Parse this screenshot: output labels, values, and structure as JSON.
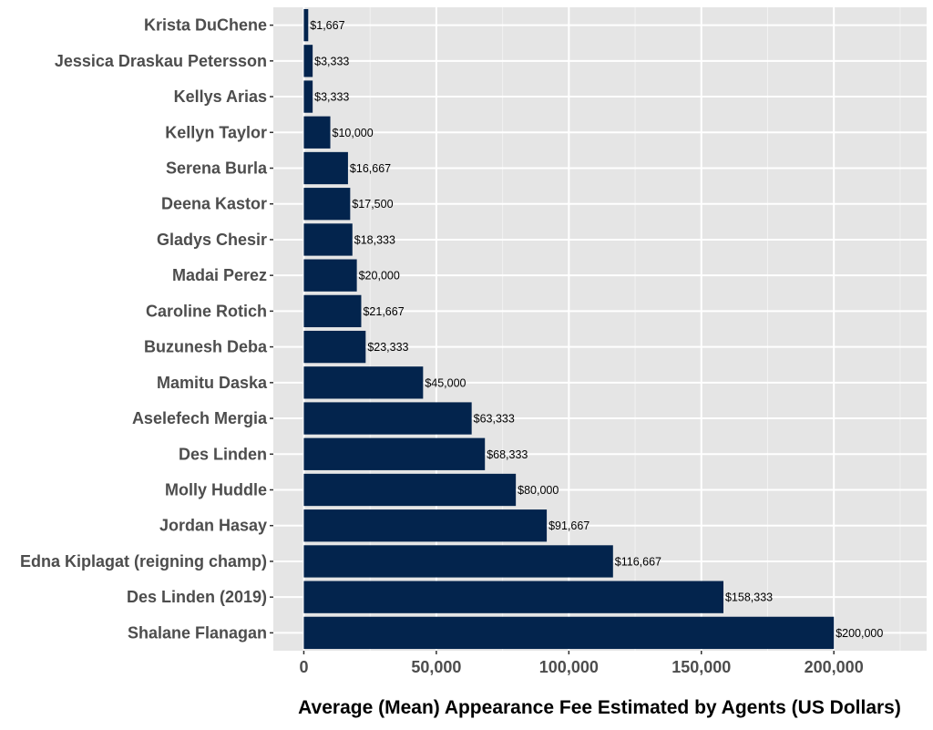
{
  "chart_data": {
    "type": "bar",
    "orientation": "horizontal",
    "categories": [
      "Krista DuChene",
      "Jessica Draskau Petersson",
      "Kellys Arias",
      "Kellyn Taylor",
      "Serena Burla",
      "Deena Kastor",
      "Gladys Chesir",
      "Madai Perez",
      "Caroline Rotich",
      "Buzunesh Deba",
      "Mamitu Daska",
      "Aselefech Mergia",
      "Des Linden",
      "Molly Huddle",
      "Jordan Hasay",
      "Edna Kiplagat (reigning champ)",
      "Des Linden (2019)",
      "Shalane Flanagan"
    ],
    "values": [
      1667,
      3333,
      3333,
      10000,
      16667,
      17500,
      18333,
      20000,
      21667,
      23333,
      45000,
      63333,
      68333,
      80000,
      91667,
      116667,
      158333,
      200000
    ],
    "data_labels": [
      "$1,667",
      "$3,333",
      "$3,333",
      "$10,000",
      "$16,667",
      "$17,500",
      "$18,333",
      "$20,000",
      "$21,667",
      "$23,333",
      "$45,000",
      "$63,333",
      "$68,333",
      "$80,000",
      "$91,667",
      "$116,667",
      "$158,333",
      "$200,000"
    ],
    "xlabel": "Average (Mean) Appearance Fee Estimated by Agents (US Dollars)",
    "ylabel": "",
    "xlim": [
      -11500,
      235000
    ],
    "x_ticks": [
      0,
      50000,
      100000,
      150000,
      200000
    ],
    "x_tick_labels": [
      "0",
      "50,000",
      "100,000",
      "150,000",
      "200,000"
    ],
    "grid": true,
    "legend": "none",
    "colors": {
      "bar": "#03244d",
      "panel_background": "#e5e5e5",
      "grid_major": "#ffffff",
      "grid_minor": "#f2f2f2"
    }
  }
}
